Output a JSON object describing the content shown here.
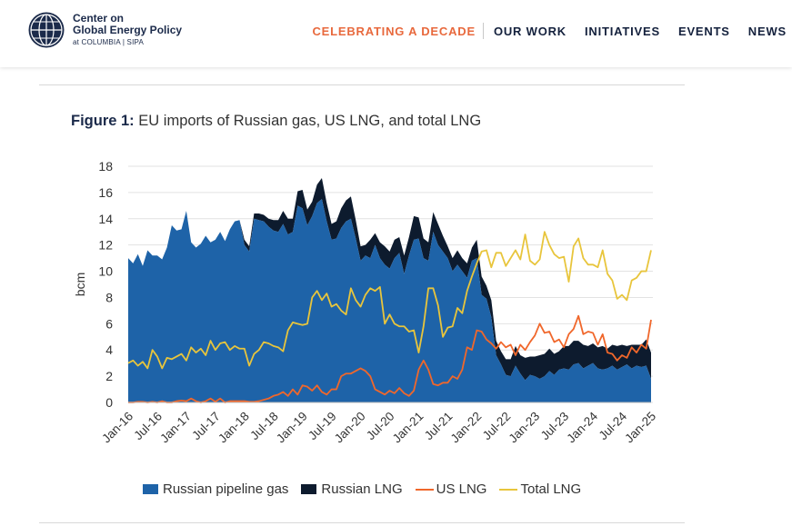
{
  "header": {
    "brand": {
      "line1": "Center on",
      "line2": "Global Energy Policy",
      "line3": "at COLUMBIA | SIPA"
    },
    "nav": [
      {
        "label": "CELEBRATING A DECADE",
        "accent": true
      },
      {
        "label": "OUR WORK"
      },
      {
        "label": "INITIATIVES"
      },
      {
        "label": "EVENTS"
      },
      {
        "label": "NEWS"
      }
    ]
  },
  "figure": {
    "label": "Figure 1:",
    "caption": "EU imports of Russian gas, US LNG, and total LNG"
  },
  "colors": {
    "pipeline": "#1e63a8",
    "russian_lng": "#0d1b2e",
    "us_lng": "#f0672b",
    "total_lng": "#e8c53c",
    "accent": "#e8693d"
  },
  "legend": [
    "Russian pipeline gas",
    "Russian LNG",
    "US LNG",
    "Total LNG"
  ],
  "chart_data": {
    "type": "area",
    "title": "EU imports of Russian gas, US LNG, and total LNG",
    "xlabel": "",
    "ylabel": "bcm",
    "ylim": [
      0,
      18
    ],
    "yticks": [
      0,
      2,
      4,
      6,
      8,
      10,
      12,
      14,
      16,
      18
    ],
    "xtick_labels": [
      "Jan-16",
      "Jul-16",
      "Jan-17",
      "Jul-17",
      "Jan-18",
      "Jul-18",
      "Jan-19",
      "Jul-19",
      "Jan-20",
      "Jul-20",
      "Jan-21",
      "Jul-21",
      "Jan-22",
      "Jul-22",
      "Jan-23",
      "Jul-23",
      "Jan-24",
      "Jul-24",
      "Jan-25"
    ],
    "months": 109,
    "series": [
      {
        "name": "Russian pipeline gas",
        "kind": "area",
        "values": [
          11.0,
          10.6,
          11.3,
          10.4,
          11.6,
          11.2,
          11.2,
          10.9,
          11.8,
          13.5,
          13.1,
          13.2,
          14.6,
          12.2,
          11.8,
          12.1,
          12.7,
          12.2,
          12.4,
          13.0,
          12.3,
          13.2,
          13.8,
          13.9,
          12.0,
          11.5,
          14.0,
          13.9,
          13.8,
          13.4,
          13.1,
          13.0,
          13.6,
          12.8,
          13.0,
          15.0,
          14.8,
          13.5,
          14.2,
          15.2,
          15.5,
          13.8,
          12.4,
          12.5,
          13.3,
          13.8,
          14.0,
          12.5,
          10.8,
          11.2,
          11.0,
          12.0,
          11.0,
          10.5,
          10.2,
          11.0,
          11.4,
          9.8,
          11.2,
          12.4,
          12.5,
          11.0,
          10.8,
          13.0,
          12.0,
          11.5,
          11.0,
          10.0,
          10.5,
          10.0,
          9.5,
          10.8,
          11.0,
          8.2,
          7.9,
          6.5,
          3.6,
          2.9,
          2.1,
          2.0,
          2.8,
          2.2,
          1.7,
          2.1,
          2.0,
          1.8,
          2.0,
          2.4,
          2.1,
          2.5,
          2.6,
          2.5,
          2.9,
          3.0,
          2.6,
          2.8,
          3.0,
          2.6,
          2.5,
          2.6,
          2.8,
          2.5,
          2.7,
          2.9,
          2.6,
          2.8,
          2.7,
          2.8,
          1.8
        ]
      },
      {
        "name": "Russian LNG",
        "kind": "stack",
        "values": [
          0,
          0,
          0,
          0,
          0,
          0,
          0,
          0,
          0,
          0,
          0,
          0,
          0,
          0,
          0,
          0,
          0,
          0,
          0,
          0,
          0,
          0,
          0,
          0,
          0.4,
          0.4,
          0.4,
          0.5,
          0.5,
          0.6,
          0.8,
          0.9,
          1.0,
          1.2,
          1.0,
          1.1,
          1.4,
          1.2,
          1.1,
          1.4,
          1.6,
          1.4,
          1.2,
          1.3,
          1.5,
          1.6,
          1.7,
          1.4,
          1.1,
          0.8,
          1.4,
          0.9,
          1.2,
          1.4,
          1.3,
          1.4,
          1.2,
          1.4,
          1.4,
          1.8,
          1.6,
          1.5,
          1.4,
          1.5,
          1.6,
          1.2,
          0.9,
          1.0,
          1.1,
          1.0,
          1.1,
          1.0,
          1.4,
          1.4,
          1.0,
          1.3,
          1.1,
          1.0,
          1.2,
          1.3,
          1.5,
          1.4,
          1.7,
          1.4,
          1.5,
          1.8,
          1.7,
          1.7,
          1.6,
          1.4,
          1.7,
          1.8,
          1.8,
          1.7,
          1.8,
          1.5,
          1.5,
          1.6,
          1.8,
          1.5,
          1.6,
          1.8,
          1.7,
          1.4,
          1.8,
          1.6,
          1.7,
          2.0,
          2.0
        ]
      },
      {
        "name": "US LNG",
        "kind": "line",
        "values": [
          0,
          0,
          0.05,
          0.05,
          0,
          0.05,
          0,
          0.1,
          0,
          0,
          0.1,
          0.15,
          0.1,
          0.3,
          0.1,
          0,
          0.1,
          0.3,
          0.05,
          0.3,
          0,
          0.1,
          0.1,
          0.1,
          0.1,
          0.05,
          0.05,
          0.1,
          0.2,
          0.3,
          0.5,
          0.6,
          0.8,
          0.5,
          1.0,
          0.6,
          1.3,
          1.2,
          0.9,
          1.3,
          0.8,
          0.6,
          1.0,
          1.0,
          2.0,
          2.2,
          2.2,
          2.4,
          2.6,
          2.4,
          2.0,
          1.0,
          0.8,
          0.6,
          0.9,
          0.7,
          1.1,
          0.7,
          0.5,
          0.9,
          2.5,
          3.2,
          2.5,
          1.4,
          1.3,
          1.5,
          1.5,
          2.0,
          1.8,
          2.5,
          4.2,
          4.0,
          5.5,
          5.4,
          4.8,
          4.5,
          4.1,
          4.6,
          4.2,
          4.4,
          3.6,
          4.4,
          4.0,
          4.6,
          5.1,
          6.0,
          5.3,
          5.4,
          4.6,
          4.8,
          4.2,
          5.2,
          5.6,
          6.6,
          5.2,
          5.4,
          5.3,
          4.4,
          5.2,
          3.8,
          3.7,
          3.2,
          3.6,
          3.4,
          4.2,
          3.8,
          4.4,
          4.1,
          6.3
        ]
      },
      {
        "name": "Total LNG",
        "kind": "line",
        "values": [
          3.0,
          3.2,
          2.8,
          3.1,
          2.6,
          4.0,
          3.5,
          2.6,
          3.4,
          3.3,
          3.5,
          3.7,
          3.2,
          4.2,
          3.8,
          4.1,
          3.6,
          4.7,
          4.0,
          4.5,
          4.6,
          4.0,
          4.3,
          4.1,
          4.1,
          2.8,
          3.7,
          4.0,
          4.6,
          4.5,
          4.3,
          4.2,
          3.9,
          5.5,
          6.1,
          6.0,
          5.9,
          6.0,
          8.0,
          8.5,
          7.8,
          8.3,
          7.3,
          7.5,
          7.0,
          6.7,
          8.7,
          7.8,
          7.3,
          8.2,
          8.7,
          8.5,
          8.8,
          6.0,
          6.7,
          6.0,
          5.8,
          5.8,
          5.4,
          5.5,
          3.8,
          5.8,
          8.7,
          8.7,
          7.4,
          5.0,
          5.7,
          5.8,
          7.2,
          6.8,
          8.5,
          9.6,
          10.6,
          11.5,
          11.6,
          10.3,
          11.4,
          11.4,
          10.4,
          11.0,
          11.6,
          10.9,
          12.8,
          10.8,
          10.5,
          10.9,
          13.0,
          12.0,
          11.3,
          11.0,
          11.1,
          9.2,
          11.9,
          12.5,
          11.0,
          10.5,
          10.5,
          10.3,
          11.6,
          9.8,
          9.3,
          7.9,
          8.2,
          7.8,
          9.3,
          9.5,
          10.0,
          10.0,
          11.6
        ]
      }
    ]
  }
}
